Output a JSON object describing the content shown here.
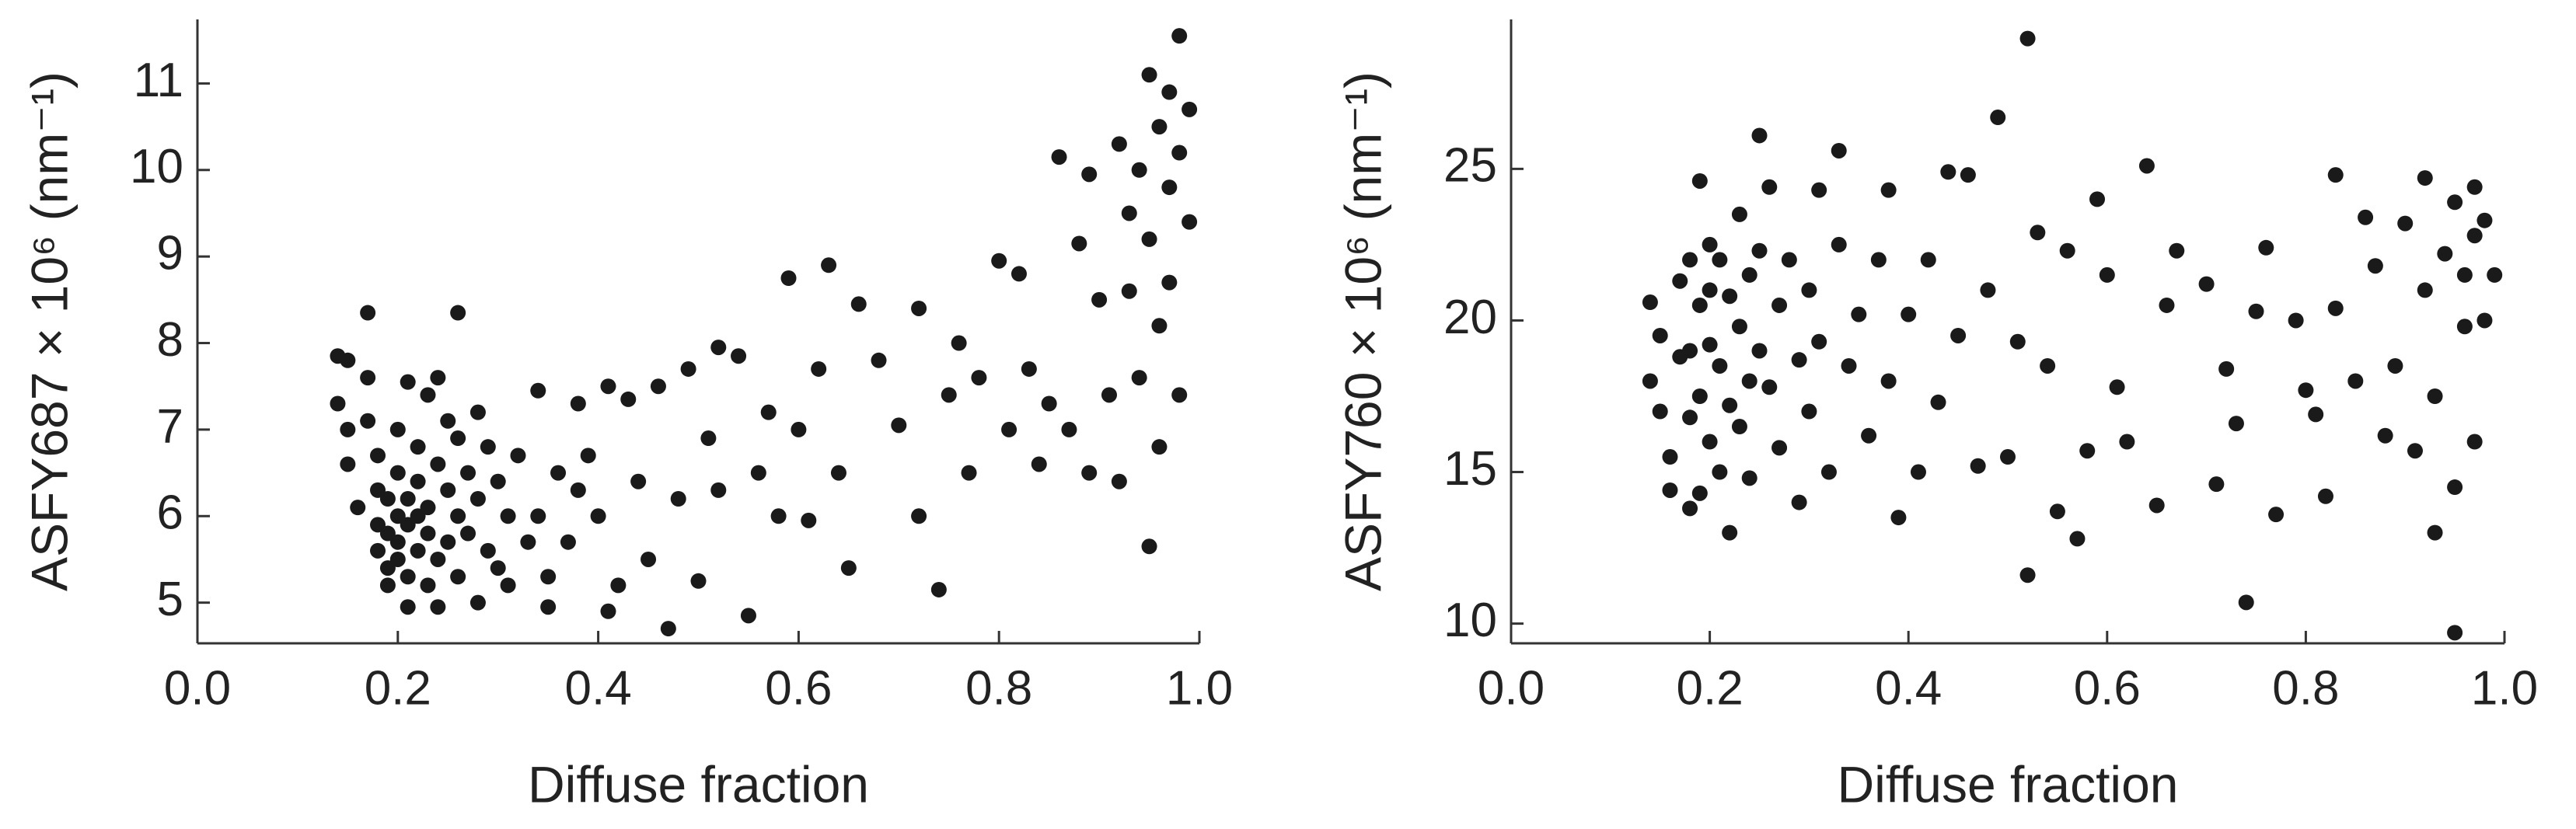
{
  "chart_data": [
    {
      "type": "scatter",
      "xlabel": "Diffuse fraction",
      "ylabel": "ASFY687 × 10⁶ (nm⁻¹)",
      "color": "#1a1a1a",
      "xlim": [
        0,
        1
      ],
      "ylim": [
        4.53,
        11.74
      ],
      "xticks": [
        {
          "value": 0,
          "label": "0.0"
        },
        {
          "value": 0.2,
          "label": "0.2"
        },
        {
          "value": 0.4,
          "label": "0.4"
        },
        {
          "value": 0.6,
          "label": "0.6"
        },
        {
          "value": 0.8,
          "label": "0.8"
        },
        {
          "value": 1,
          "label": "1.0"
        }
      ],
      "yticks": [
        5,
        6,
        7,
        8,
        9,
        10,
        11
      ],
      "x": [
        0.14,
        0.15,
        0.14,
        0.15,
        0.15,
        0.16,
        0.17,
        0.17,
        0.17,
        0.18,
        0.18,
        0.18,
        0.18,
        0.19,
        0.19,
        0.19,
        0.19,
        0.2,
        0.2,
        0.2,
        0.2,
        0.2,
        0.21,
        0.21,
        0.21,
        0.21,
        0.21,
        0.22,
        0.22,
        0.22,
        0.22,
        0.23,
        0.23,
        0.23,
        0.23,
        0.24,
        0.24,
        0.24,
        0.24,
        0.25,
        0.25,
        0.25,
        0.26,
        0.26,
        0.26,
        0.26,
        0.27,
        0.27,
        0.28,
        0.28,
        0.28,
        0.29,
        0.29,
        0.3,
        0.3,
        0.31,
        0.31,
        0.32,
        0.33,
        0.34,
        0.34,
        0.35,
        0.35,
        0.36,
        0.37,
        0.38,
        0.38,
        0.39,
        0.4,
        0.41,
        0.41,
        0.42,
        0.43,
        0.44,
        0.45,
        0.46,
        0.47,
        0.48,
        0.49,
        0.5,
        0.51,
        0.52,
        0.52,
        0.54,
        0.55,
        0.56,
        0.57,
        0.58,
        0.59,
        0.6,
        0.61,
        0.62,
        0.63,
        0.64,
        0.65,
        0.66,
        0.68,
        0.7,
        0.72,
        0.72,
        0.74,
        0.75,
        0.76,
        0.77,
        0.78,
        0.8,
        0.81,
        0.82,
        0.83,
        0.84,
        0.85,
        0.86,
        0.87,
        0.88,
        0.89,
        0.89,
        0.9,
        0.91,
        0.92,
        0.92,
        0.93,
        0.93,
        0.94,
        0.94,
        0.95,
        0.95,
        0.95,
        0.96,
        0.96,
        0.96,
        0.97,
        0.97,
        0.97,
        0.98,
        0.98,
        0.98,
        0.99,
        0.99
      ],
      "values": [
        7.85,
        7.8,
        7.3,
        7.0,
        6.6,
        6.1,
        8.35,
        7.6,
        7.1,
        6.7,
        6.3,
        5.9,
        5.6,
        6.2,
        5.8,
        5.4,
        5.2,
        7.0,
        6.5,
        6.0,
        5.7,
        5.5,
        7.55,
        6.2,
        5.9,
        5.3,
        4.95,
        6.8,
        6.4,
        6.0,
        5.6,
        7.4,
        6.1,
        5.8,
        5.2,
        7.6,
        6.6,
        5.5,
        4.95,
        7.1,
        6.3,
        5.7,
        8.35,
        6.9,
        6.0,
        5.3,
        6.5,
        5.8,
        7.2,
        6.2,
        5.0,
        6.8,
        5.6,
        6.4,
        5.4,
        6.0,
        5.2,
        6.7,
        5.7,
        7.45,
        6.0,
        4.95,
        5.3,
        6.5,
        5.7,
        7.3,
        6.3,
        6.7,
        6.0,
        7.5,
        4.9,
        5.2,
        7.35,
        6.4,
        5.5,
        7.5,
        4.7,
        6.2,
        7.7,
        5.25,
        6.9,
        7.95,
        6.3,
        7.85,
        4.85,
        6.5,
        7.2,
        6.0,
        8.75,
        7.0,
        5.95,
        7.7,
        8.9,
        6.5,
        5.4,
        8.45,
        7.8,
        7.05,
        8.4,
        6.0,
        5.15,
        7.4,
        8.0,
        6.5,
        7.6,
        8.95,
        7.0,
        8.8,
        7.7,
        6.6,
        7.3,
        10.15,
        7.0,
        9.15,
        9.95,
        6.5,
        8.5,
        7.4,
        6.4,
        10.3,
        8.6,
        9.5,
        10.0,
        7.6,
        5.65,
        11.1,
        9.2,
        10.5,
        6.8,
        8.2,
        10.9,
        9.8,
        8.7,
        11.55,
        10.2,
        7.4,
        10.7,
        9.4
      ]
    },
    {
      "type": "scatter",
      "xlabel": "Diffuse fraction",
      "ylabel": "ASFY760 × 10⁶ (nm⁻¹)",
      "color": "#1a1a1a",
      "xlim": [
        0,
        1
      ],
      "ylim": [
        9.35,
        29.93
      ],
      "xticks": [
        {
          "value": 0,
          "label": "0.0"
        },
        {
          "value": 0.2,
          "label": "0.2"
        },
        {
          "value": 0.4,
          "label": "0.4"
        },
        {
          "value": 0.6,
          "label": "0.6"
        },
        {
          "value": 0.8,
          "label": "0.8"
        },
        {
          "value": 1,
          "label": "1.0"
        }
      ],
      "yticks": [
        10,
        15,
        20,
        25
      ],
      "x": [
        0.14,
        0.14,
        0.15,
        0.15,
        0.16,
        0.16,
        0.17,
        0.17,
        0.18,
        0.18,
        0.18,
        0.18,
        0.19,
        0.19,
        0.19,
        0.19,
        0.2,
        0.2,
        0.2,
        0.2,
        0.21,
        0.21,
        0.21,
        0.22,
        0.22,
        0.22,
        0.23,
        0.23,
        0.23,
        0.24,
        0.24,
        0.24,
        0.25,
        0.25,
        0.25,
        0.26,
        0.26,
        0.27,
        0.27,
        0.28,
        0.29,
        0.29,
        0.3,
        0.3,
        0.31,
        0.31,
        0.32,
        0.33,
        0.33,
        0.34,
        0.35,
        0.36,
        0.37,
        0.38,
        0.38,
        0.39,
        0.4,
        0.41,
        0.42,
        0.43,
        0.44,
        0.45,
        0.46,
        0.47,
        0.48,
        0.49,
        0.5,
        0.51,
        0.52,
        0.52,
        0.53,
        0.54,
        0.55,
        0.56,
        0.57,
        0.58,
        0.59,
        0.6,
        0.61,
        0.62,
        0.64,
        0.65,
        0.66,
        0.67,
        0.7,
        0.71,
        0.72,
        0.73,
        0.74,
        0.75,
        0.76,
        0.77,
        0.79,
        0.8,
        0.81,
        0.82,
        0.83,
        0.83,
        0.85,
        0.86,
        0.87,
        0.88,
        0.89,
        0.9,
        0.91,
        0.92,
        0.92,
        0.93,
        0.93,
        0.94,
        0.95,
        0.95,
        0.95,
        0.96,
        0.96,
        0.97,
        0.97,
        0.97,
        0.98,
        0.98,
        0.99
      ],
      "values": [
        20.6,
        18.0,
        19.5,
        17.0,
        15.5,
        14.4,
        21.3,
        18.8,
        22.0,
        19.0,
        16.8,
        13.8,
        24.6,
        20.5,
        17.5,
        14.3,
        22.5,
        21.0,
        19.2,
        16.0,
        22.0,
        18.5,
        15.0,
        13.0,
        20.8,
        17.2,
        23.5,
        19.8,
        16.5,
        21.5,
        18.0,
        14.8,
        26.1,
        22.3,
        19.0,
        24.4,
        17.8,
        20.5,
        15.8,
        22.0,
        18.7,
        14.0,
        21.0,
        17.0,
        24.3,
        19.3,
        15.0,
        25.6,
        22.5,
        18.5,
        20.2,
        16.2,
        22.0,
        24.3,
        18.0,
        13.5,
        20.2,
        15.0,
        22.0,
        17.3,
        24.9,
        19.5,
        24.8,
        15.2,
        21.0,
        26.7,
        15.5,
        19.3,
        29.3,
        11.6,
        22.9,
        18.5,
        13.7,
        22.3,
        12.8,
        15.7,
        24.0,
        21.5,
        17.8,
        16.0,
        25.1,
        13.9,
        20.5,
        22.3,
        21.2,
        14.6,
        18.4,
        16.6,
        10.7,
        20.3,
        22.4,
        13.6,
        20.0,
        17.7,
        16.9,
        14.2,
        24.8,
        20.4,
        18.0,
        23.4,
        21.8,
        16.2,
        18.5,
        23.2,
        15.7,
        21.0,
        24.7,
        13.0,
        17.5,
        22.2,
        9.7,
        14.5,
        23.9,
        19.8,
        21.5,
        16.0,
        22.8,
        24.4,
        20.0,
        23.3,
        21.5
      ]
    }
  ]
}
